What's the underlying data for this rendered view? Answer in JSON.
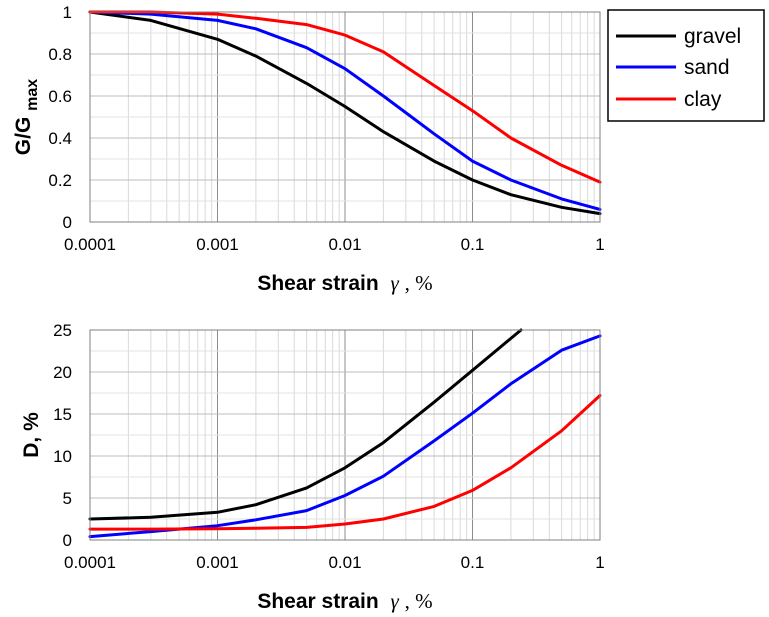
{
  "chart_data": [
    {
      "type": "line",
      "xscale": "log",
      "xlim": [
        0.0001,
        1
      ],
      "ylim": [
        0,
        1
      ],
      "x_ticks": [
        "0.0001",
        "0.001",
        "0.01",
        "0.1",
        "1"
      ],
      "y_ticks": [
        "0",
        "0.2",
        "0.4",
        "0.6",
        "0.8",
        "1"
      ],
      "xlabel": {
        "bold": "Shear strain",
        "symbol": "γ",
        "unit": ", %"
      },
      "ylabel": {
        "main": "G/G",
        "sub": "max"
      },
      "grid": true,
      "series": [
        {
          "name": "gravel",
          "color": "#000000",
          "x": [
            0.0001,
            0.0003,
            0.001,
            0.002,
            0.005,
            0.01,
            0.02,
            0.05,
            0.1,
            0.2,
            0.5,
            1
          ],
          "y": [
            1.0,
            0.96,
            0.87,
            0.79,
            0.66,
            0.55,
            0.43,
            0.29,
            0.2,
            0.13,
            0.07,
            0.04
          ]
        },
        {
          "name": "sand",
          "color": "#0000ff",
          "x": [
            0.0001,
            0.0003,
            0.001,
            0.002,
            0.005,
            0.01,
            0.02,
            0.05,
            0.1,
            0.2,
            0.5,
            1
          ],
          "y": [
            1.0,
            0.99,
            0.96,
            0.92,
            0.83,
            0.73,
            0.6,
            0.42,
            0.29,
            0.2,
            0.11,
            0.06
          ]
        },
        {
          "name": "clay",
          "color": "#ff0000",
          "x": [
            0.0001,
            0.0003,
            0.001,
            0.002,
            0.005,
            0.01,
            0.02,
            0.05,
            0.1,
            0.2,
            0.5,
            1
          ],
          "y": [
            1.0,
            1.0,
            0.99,
            0.97,
            0.94,
            0.89,
            0.81,
            0.65,
            0.53,
            0.4,
            0.27,
            0.19
          ]
        }
      ]
    },
    {
      "type": "line",
      "xscale": "log",
      "xlim": [
        0.0001,
        1
      ],
      "ylim": [
        0,
        25
      ],
      "x_ticks": [
        "0.0001",
        "0.001",
        "0.01",
        "0.1",
        "1"
      ],
      "y_ticks": [
        "0",
        "5",
        "10",
        "15",
        "20",
        "25"
      ],
      "xlabel": {
        "bold": "Shear strain",
        "symbol": "γ",
        "unit": ", %"
      },
      "ylabel": {
        "main": "D, %"
      },
      "grid": true,
      "series": [
        {
          "name": "gravel",
          "color": "#000000",
          "x": [
            0.0001,
            0.0003,
            0.001,
            0.002,
            0.005,
            0.01,
            0.02,
            0.05,
            0.1,
            0.2,
            0.24
          ],
          "y": [
            2.5,
            2.7,
            3.3,
            4.2,
            6.2,
            8.6,
            11.6,
            16.4,
            20.2,
            24.0,
            25.0
          ]
        },
        {
          "name": "sand",
          "color": "#0000ff",
          "x": [
            0.0001,
            0.0003,
            0.001,
            0.002,
            0.005,
            0.01,
            0.02,
            0.05,
            0.1,
            0.2,
            0.5,
            1
          ],
          "y": [
            0.4,
            1.0,
            1.7,
            2.4,
            3.5,
            5.3,
            7.6,
            11.8,
            15.1,
            18.6,
            22.6,
            24.3
          ]
        },
        {
          "name": "clay",
          "color": "#ff0000",
          "x": [
            0.0001,
            0.0003,
            0.001,
            0.002,
            0.005,
            0.01,
            0.02,
            0.05,
            0.1,
            0.2,
            0.5,
            1
          ],
          "y": [
            1.3,
            1.3,
            1.35,
            1.4,
            1.5,
            1.9,
            2.5,
            4.0,
            5.9,
            8.6,
            13.0,
            17.2
          ]
        }
      ]
    }
  ],
  "legend": {
    "position": "top-right",
    "items": [
      {
        "label": "gravel",
        "color": "#000000"
      },
      {
        "label": "sand",
        "color": "#0000ff"
      },
      {
        "label": "clay",
        "color": "#ff0000"
      }
    ]
  }
}
